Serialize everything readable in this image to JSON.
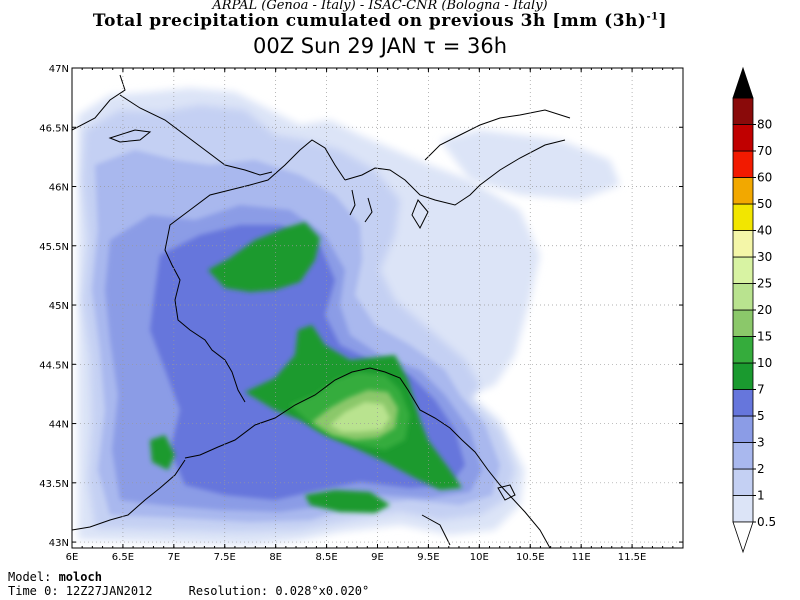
{
  "header": {
    "line1": "ARPAL (Genoa - Italy)   -   ISAC-CNR (Bologna - Italy)",
    "line2": "Total precipitation cumulated on previous 3h [mm (3h)",
    "line2_sup": "-1",
    "line2_end": "]",
    "line3": "00Z Sun 29 JAN  τ = 36h"
  },
  "axes": {
    "lon_labels": [
      "6E",
      "6.5E",
      "7E",
      "7.5E",
      "8E",
      "8.5E",
      "9E",
      "9.5E",
      "10E",
      "10.5E",
      "11E",
      "11.5E"
    ],
    "lat_labels": [
      "47N",
      "46.5N",
      "46N",
      "45.5N",
      "45N",
      "44.5N",
      "44N",
      "43.5N",
      "43N"
    ],
    "lon_range": [
      6,
      12
    ],
    "lat_range": [
      42.95,
      47
    ]
  },
  "colorbar": {
    "labels": [
      "0.5",
      "1",
      "2",
      "3",
      "5",
      "7",
      "10",
      "15",
      "20",
      "25",
      "30",
      "40",
      "50",
      "60",
      "70",
      "80"
    ],
    "colors": [
      "#dce4f7",
      "#c4d0f3",
      "#a9b8ee",
      "#8b9ce6",
      "#6676dc",
      "#1a9a2f",
      "#35ac3c",
      "#8bc86a",
      "#b9e38f",
      "#d8f3a3",
      "#f4f6a8",
      "#f2e600",
      "#f2a800",
      "#f21a00",
      "#c00000",
      "#8a0a0a"
    ],
    "top_color": "#000000"
  },
  "footer": {
    "model_label": "Model: ",
    "model_value": "moloch",
    "time_label": "Time 0: 12Z27JAN2012",
    "resolution_label": "Resolution: 0.028°x0.020°"
  }
}
